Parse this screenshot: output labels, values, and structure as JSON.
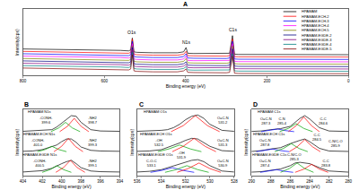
{
  "chart_data": [
    {
      "type": "line",
      "title": "A",
      "x_label": "Binding energy (eV)",
      "y_label": "Intensity(cps)",
      "xlim": [
        800,
        0
      ],
      "xticks": [
        800,
        600,
        400,
        200,
        0
      ],
      "ylim": [
        0,
        140
      ],
      "tick_labels": "x",
      "legend": "upper right",
      "x": [
        800,
        700,
        600,
        560,
        540,
        535,
        531,
        527,
        520,
        480,
        420,
        405,
        399,
        395,
        380,
        300,
        292,
        285,
        280,
        270,
        200,
        100,
        0
      ],
      "series": [
        {
          "name": "HPAMAM",
          "color": "#000000",
          "values": [
            56,
            55,
            54,
            53,
            52,
            54,
            79,
            50,
            49,
            48,
            48,
            50,
            59,
            47,
            46.5,
            46,
            47,
            84,
            45,
            44.5,
            44.5,
            44,
            44
          ]
        },
        {
          "name": "HPAMAM-ECH-2",
          "color": "#ff0000",
          "values": [
            51,
            50,
            49,
            48,
            47,
            49,
            77,
            45,
            44,
            43,
            43,
            45,
            51,
            42,
            41.5,
            41,
            42,
            77,
            40,
            39.5,
            39.5,
            39,
            39
          ]
        },
        {
          "name": "HPAMAM-ECH-3",
          "color": "#0000ff",
          "values": [
            46,
            45,
            44,
            43,
            42,
            44,
            72,
            40,
            39,
            38,
            38,
            40,
            46,
            37,
            36.5,
            36,
            37,
            72,
            35,
            34.5,
            34.5,
            34,
            34
          ]
        },
        {
          "name": "HPAMAM-ECH-4",
          "color": "#ff00ff",
          "values": [
            41,
            40,
            39,
            38,
            37,
            39,
            67,
            35,
            34,
            33,
            33,
            35,
            41,
            32,
            31.5,
            31,
            32,
            67,
            30,
            29.5,
            29.5,
            29,
            29
          ]
        },
        {
          "name": "HPAMAM-ECH-5",
          "color": "#808000",
          "values": [
            36,
            35,
            34,
            33,
            32,
            34,
            62,
            30,
            29,
            28,
            28,
            30,
            36,
            27,
            26.5,
            26,
            27,
            62,
            25,
            24.5,
            24.5,
            24,
            24
          ]
        },
        {
          "name": "HPAMAM-EGDE-2",
          "color": "#000080",
          "values": [
            31,
            30,
            29,
            28,
            27,
            29,
            59,
            25,
            24,
            23,
            23,
            25,
            29,
            22,
            21.5,
            21,
            22,
            56,
            20,
            19.5,
            19.5,
            19,
            19
          ]
        },
        {
          "name": "HPAMAM-EGDE-3",
          "color": "#800080",
          "values": [
            26,
            25,
            24,
            23,
            22,
            24,
            54,
            20,
            19,
            18,
            18,
            20,
            24,
            17,
            16.5,
            16,
            17,
            51,
            15,
            14.5,
            14.5,
            14,
            14
          ]
        },
        {
          "name": "HPAMAM-EGDE-4",
          "color": "#008080",
          "values": [
            21,
            20,
            19,
            18,
            17,
            19,
            49,
            15,
            14,
            13,
            13,
            15,
            19,
            12,
            11.5,
            11,
            12,
            46,
            10,
            9.5,
            9.5,
            9,
            9
          ]
        },
        {
          "name": "HPAMAM-EGDE-5",
          "color": "#800000",
          "values": [
            16,
            15,
            14,
            13,
            12,
            14,
            44,
            10,
            9,
            8,
            8,
            10,
            14,
            7,
            6.5,
            6,
            7,
            41,
            5,
            4.5,
            4.5,
            4,
            4
          ]
        }
      ],
      "annotations": [
        {
          "text": "O1s",
          "x": 531,
          "y": 92
        },
        {
          "text": "N1s",
          "x": 399,
          "y": 70
        },
        {
          "text": "C1s",
          "x": 285,
          "y": 96
        }
      ]
    },
    {
      "type": "line",
      "title": "B",
      "x_label": "Binding energy (eV)",
      "y_label": "Intensity(cps)",
      "xlim": [
        404,
        394
      ],
      "xticks": [
        404,
        402,
        400,
        398,
        396,
        394
      ],
      "ylim": [
        0,
        100
      ],
      "tick_labels": "x",
      "x": [
        404,
        403,
        402,
        401,
        400.5,
        400,
        399.5,
        399,
        398.5,
        398,
        397,
        396,
        394
      ],
      "series": [
        {
          "color": "#000000",
          "values": [
            66.5,
            67,
            67.5,
            69,
            73,
            79,
            85,
            90,
            89,
            80,
            69,
            67,
            66.5
          ]
        },
        {
          "color": "#00a000",
          "x": [
            401.1,
            400.3,
            399.6,
            398.9,
            398.1
          ],
          "values": [
            66,
            71.6,
            80,
            71.6,
            66
          ]
        },
        {
          "color": "#ff0000",
          "x": [
            400.2,
            399.4,
            398.7,
            398,
            397.2
          ],
          "values": [
            66,
            74,
            86,
            74,
            66
          ]
        },
        {
          "color": "#000000",
          "values": [
            36.5,
            37,
            39,
            44,
            46,
            51,
            55,
            55,
            50,
            43,
            38,
            37,
            36.5
          ]
        },
        {
          "color": "#00a000",
          "x": [
            402.5,
            401.7,
            401.0,
            400.3,
            399.5
          ],
          "values": [
            36,
            39.2,
            44,
            39.2,
            36
          ]
        },
        {
          "color": "#ff0000",
          "x": [
            400.8,
            400.0,
            399.3,
            398.6,
            397.8
          ],
          "values": [
            36,
            44,
            56,
            44,
            36
          ]
        },
        {
          "color": "#000000",
          "values": [
            5.5,
            6,
            7.5,
            11,
            15,
            18,
            21,
            23,
            18,
            12,
            7,
            6,
            5.5
          ]
        },
        {
          "color": "#00a000",
          "x": [
            402,
            401.2,
            400.5,
            399.8,
            399
          ],
          "values": [
            5,
            9,
            15,
            9,
            5
          ]
        },
        {
          "color": "#ff0000",
          "x": [
            400.6,
            399.8,
            399.1,
            398.4,
            397.6
          ],
          "values": [
            5,
            12.2,
            23,
            12.2,
            5
          ]
        }
      ],
      "annotations": [
        {
          "text": "HPAMAM N1s",
          "x": 402.3,
          "y": 96
        },
        {
          "text": "-CONH-\n399.6",
          "x": 401.6,
          "y": 84
        },
        {
          "text": "-NH2\n398.7",
          "x": 396.8,
          "y": 84
        },
        {
          "text": "HPAMAM-ECH N1s",
          "x": 402.3,
          "y": 62
        },
        {
          "text": "-CONH-\n401.0",
          "x": 402.4,
          "y": 50
        },
        {
          "text": "-NH2\n399.3",
          "x": 396.8,
          "y": 50
        },
        {
          "text": "HPAMAM-EGDE N1s",
          "x": 402.3,
          "y": 31
        },
        {
          "text": "-CONH-\n400.5",
          "x": 402.2,
          "y": 19
        },
        {
          "text": "-NH2\n399.1",
          "x": 396.8,
          "y": 19
        }
      ]
    },
    {
      "type": "line",
      "title": "C",
      "x_label": "Binding energy (eV)",
      "y_label": "Intensity(cps)",
      "xlim": [
        536,
        528
      ],
      "xticks": [
        536,
        534,
        532,
        530,
        528
      ],
      "ylim": [
        0,
        100
      ],
      "tick_labels": "x",
      "x": [
        536,
        535,
        534,
        533.5,
        533,
        532.5,
        532,
        531.5,
        531,
        530.5,
        530,
        529,
        528
      ],
      "series": [
        {
          "color": "#000000",
          "values": [
            66.5,
            67,
            68,
            69,
            72,
            77,
            84,
            89,
            91,
            86,
            77,
            68,
            66.5
          ]
        },
        {
          "color": "#ff0000",
          "x": [
            533.2,
            532.2,
            531.2,
            530.2,
            529.2
          ],
          "values": [
            66,
            75,
            90,
            75,
            66
          ]
        },
        {
          "color": "#000000",
          "values": [
            36.5,
            37,
            39,
            42,
            45,
            49,
            53,
            56,
            55,
            50,
            44,
            37.5,
            36.5
          ]
        },
        {
          "color": "#00a000",
          "x": [
            534.3,
            533.4,
            532.5,
            531.6,
            530.7
          ],
          "values": [
            36,
            40,
            46,
            40,
            36
          ]
        },
        {
          "color": "#ff0000",
          "x": [
            533.1,
            532.2,
            531.3,
            530.4,
            529.5
          ],
          "values": [
            36,
            44,
            56,
            44,
            36
          ]
        },
        {
          "color": "#000000",
          "values": [
            5.5,
            6.5,
            9,
            12,
            15,
            18,
            21,
            23,
            24,
            21,
            15,
            7,
            5.5
          ]
        },
        {
          "color": "#0000ff",
          "x": [
            534.9,
            534,
            533.1,
            532.2,
            531.3
          ],
          "values": [
            5,
            7.8,
            12,
            7.8,
            5
          ]
        },
        {
          "color": "#00a000",
          "x": [
            533.7,
            532.8,
            531.9,
            531,
            530.1
          ],
          "values": [
            5,
            9,
            15,
            9,
            5
          ]
        },
        {
          "color": "#ff0000",
          "x": [
            532.7,
            531.8,
            530.9,
            530,
            529.1
          ],
          "values": [
            5,
            10.6,
            19,
            10.6,
            5
          ]
        }
      ],
      "annotations": [
        {
          "text": "HPAMAM O1s",
          "x": 534.5,
          "y": 96
        },
        {
          "text": "O=C-N\n531.2",
          "x": 528.9,
          "y": 84
        },
        {
          "text": "HPAMAM-ECH O1s",
          "x": 534.5,
          "y": 62
        },
        {
          "text": "-OH\n532.5",
          "x": 534.2,
          "y": 50
        },
        {
          "text": "O=C-N\n531.3",
          "x": 528.9,
          "y": 50
        },
        {
          "text": "HPAMAM-EGDE O1s",
          "x": 534.5,
          "y": 31
        },
        {
          "text": "C-O-C\n533.1",
          "x": 534.8,
          "y": 19
        },
        {
          "text": "-OH\n531.9",
          "x": 532.3,
          "y": 31
        },
        {
          "text": "O=C-N\n530.9",
          "x": 528.9,
          "y": 19
        }
      ]
    },
    {
      "type": "line",
      "title": "D",
      "x_label": "Binding energy (eV)",
      "y_label": "Intensity(cps)",
      "xlim": [
        290,
        280
      ],
      "xticks": [
        290,
        288,
        286,
        284,
        282,
        280
      ],
      "ylim": [
        0,
        100
      ],
      "tick_labels": "x",
      "x": [
        290,
        289,
        288,
        287.5,
        287,
        286,
        285.5,
        285,
        284.5,
        284,
        283,
        282,
        280
      ],
      "series": [
        {
          "color": "#000000",
          "values": [
            66.3,
            67,
            69,
            70,
            70.5,
            74,
            80,
            86,
            90,
            85,
            72,
            67,
            66.3
          ]
        },
        {
          "color": "#0000ff",
          "x": [
            289,
            288.1,
            287.3,
            286.5,
            285.6
          ],
          "values": [
            66,
            67.6,
            70,
            67.6,
            66
          ]
        },
        {
          "color": "#00a000",
          "x": [
            287.1,
            286.2,
            285.4,
            284.6,
            283.7
          ],
          "values": [
            66,
            70.8,
            78,
            70.8,
            66
          ]
        },
        {
          "color": "#ff0000",
          "x": [
            286.2,
            285.4,
            284.6,
            283.8,
            283
          ],
          "values": [
            66,
            74.8,
            88,
            74.8,
            66
          ]
        },
        {
          "color": "#000000",
          "values": [
            36.3,
            37.5,
            40,
            40.5,
            42,
            48,
            51,
            53,
            55,
            51,
            41,
            37,
            36.3
          ]
        },
        {
          "color": "#0000ff",
          "x": [
            289.5,
            288.6,
            287.8,
            287,
            286.1
          ],
          "values": [
            36,
            37.6,
            40,
            37.6,
            36
          ]
        },
        {
          "color": "#00a000",
          "x": [
            287.6,
            286.7,
            285.9,
            285.1,
            284.2
          ],
          "values": [
            36,
            40.8,
            48,
            40.8,
            36
          ]
        },
        {
          "color": "#ff0000",
          "x": [
            286.1,
            285.3,
            284.5,
            283.7,
            282.9
          ],
          "values": [
            36,
            43.2,
            54,
            43.2,
            36
          ]
        },
        {
          "color": "#000000",
          "values": [
            5.3,
            6,
            8,
            9,
            10,
            15,
            19,
            20,
            19,
            18,
            12,
            7,
            5.3
          ]
        },
        {
          "color": "#0000ff",
          "x": [
            289.1,
            288.2,
            287.4,
            286.6,
            285.7
          ],
          "values": [
            5,
            6.6,
            9,
            6.6,
            5
          ]
        },
        {
          "color": "#00a000",
          "x": [
            287,
            286.1,
            285.3,
            284.5,
            283.6
          ],
          "values": [
            5,
            10.6,
            19,
            10.6,
            5
          ]
        },
        {
          "color": "#ff0000",
          "x": [
            285.5,
            284.6,
            283.8,
            283,
            282.1
          ],
          "values": [
            5,
            9.8,
            17,
            9.8,
            5
          ]
        }
      ],
      "annotations": [
        {
          "text": "HPAMAM C1s",
          "x": 288.2,
          "y": 96
        },
        {
          "text": "O=C-N\n287.3",
          "x": 288.5,
          "y": 82
        },
        {
          "text": "C-N\n285.4",
          "x": 286.8,
          "y": 82
        },
        {
          "text": "C-C\n284.6",
          "x": 282.6,
          "y": 82
        },
        {
          "text": "HPAMAM-ECH C1s",
          "x": 288.2,
          "y": 62
        },
        {
          "text": "O=C-N\n287.8",
          "x": 288.6,
          "y": 50
        },
        {
          "text": "C-N/C-O\n285.9",
          "x": 281.3,
          "y": 48
        },
        {
          "text": "C-C\n284.5",
          "x": 283.2,
          "y": 58
        },
        {
          "text": "HPAMAM-EGDE C1s",
          "x": 288.2,
          "y": 31
        },
        {
          "text": "O=C-N\n287.4",
          "x": 288.6,
          "y": 19
        },
        {
          "text": "C-N/C-O\n285.3",
          "x": 285.6,
          "y": 28
        },
        {
          "text": "C-C\n283.8",
          "x": 282.3,
          "y": 19
        }
      ]
    }
  ]
}
